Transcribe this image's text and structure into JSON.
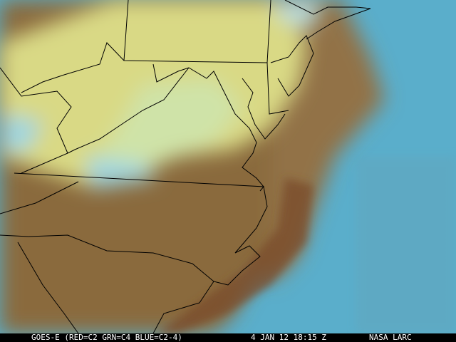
{
  "caption": {
    "satellite": "GOES-E (RED=C2 GRN=C4 BLUE=C2-4)",
    "datetime": "4 JAN 12 18:15 Z",
    "source": "NASA LARC"
  },
  "colors": {
    "land": "#8a6b3e",
    "ocean": "#5aaecb",
    "cloud_high": "#d9d985",
    "cloud_low": "#9fd6e0",
    "boundary": "#000000"
  }
}
